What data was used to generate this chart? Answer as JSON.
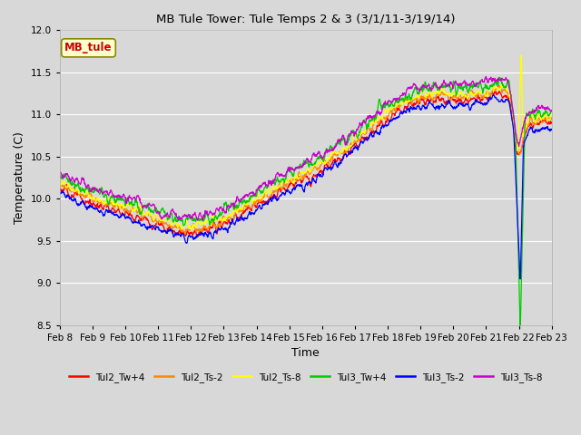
{
  "title": "MB Tule Tower: Tule Temps 2 & 3 (3/1/11-3/19/14)",
  "xlabel": "Time",
  "ylabel": "Temperature (C)",
  "ylim": [
    8.5,
    12.0
  ],
  "xlim": [
    0,
    15
  ],
  "legend_title": "MB_tule",
  "series_names": [
    "Tul2_Tw+4",
    "Tul2_Ts-2",
    "Tul2_Ts-8",
    "Tul3_Tw+4",
    "Tul3_Ts-2",
    "Tul3_Ts-8"
  ],
  "series_colors": [
    "#ff0000",
    "#ff8800",
    "#ffff00",
    "#00cc00",
    "#0000ff",
    "#cc00cc"
  ],
  "x_tick_labels": [
    "Feb 8",
    "Feb 9",
    "Feb 10",
    "Feb 11",
    "Feb 12",
    "Feb 13",
    "Feb 14",
    "Feb 15",
    "Feb 16",
    "Feb 17",
    "Feb 18",
    "Feb 19",
    "Feb 20",
    "Feb 21",
    "Feb 22",
    "Feb 23"
  ],
  "yticks": [
    8.5,
    9.0,
    9.5,
    10.0,
    10.5,
    11.0,
    11.5,
    12.0
  ],
  "bg_color": "#d8d8d8",
  "grid_color": "#ffffff",
  "legend_box_color": "#ffffcc",
  "legend_box_text": "MB_tule"
}
